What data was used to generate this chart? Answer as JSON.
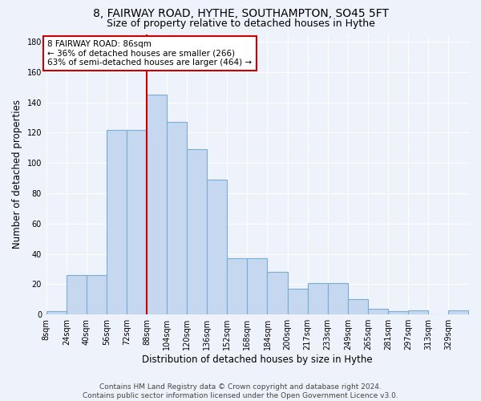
{
  "title1": "8, FAIRWAY ROAD, HYTHE, SOUTHAMPTON, SO45 5FT",
  "title2": "Size of property relative to detached houses in Hythe",
  "xlabel": "Distribution of detached houses by size in Hythe",
  "ylabel": "Number of detached properties",
  "bar_labels": [
    "8sqm",
    "24sqm",
    "40sqm",
    "56sqm",
    "72sqm",
    "88sqm",
    "104sqm",
    "120sqm",
    "136sqm",
    "152sqm",
    "168sqm",
    "184sqm",
    "200sqm",
    "217sqm",
    "233sqm",
    "249sqm",
    "265sqm",
    "281sqm",
    "297sqm",
    "313sqm",
    "329sqm"
  ],
  "bar_values": [
    2,
    26,
    26,
    122,
    122,
    145,
    127,
    109,
    89,
    37,
    37,
    28,
    17,
    21,
    21,
    10,
    4,
    2,
    3,
    0,
    3
  ],
  "bar_color": "#c5d8f0",
  "bar_edge_color": "#7aadd4",
  "annotation_text": "8 FAIRWAY ROAD: 86sqm\n← 36% of detached houses are smaller (266)\n63% of semi-detached houses are larger (464) →",
  "annotation_box_color": "#ffffff",
  "annotation_box_edge_color": "#cc0000",
  "vline_color": "#cc0000",
  "footnote": "Contains HM Land Registry data © Crown copyright and database right 2024.\nContains public sector information licensed under the Open Government Licence v3.0.",
  "ylim": [
    0,
    185
  ],
  "bin_width": 16,
  "background_color": "#eef2fa",
  "grid_color": "#ffffff",
  "title1_fontsize": 10,
  "title2_fontsize": 9,
  "xlabel_fontsize": 8.5,
  "ylabel_fontsize": 8.5,
  "tick_fontsize": 7,
  "footnote_fontsize": 6.5,
  "vline_bin_index": 5
}
